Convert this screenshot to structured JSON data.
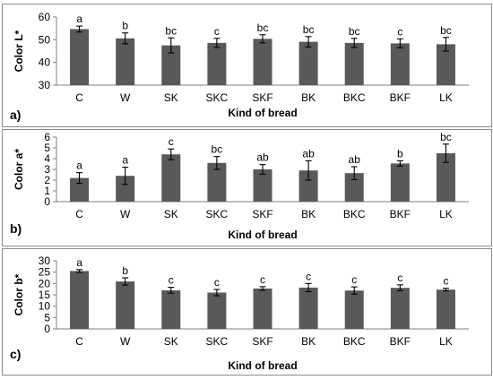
{
  "chart_data": [
    {
      "type": "bar",
      "panel_label": "a)",
      "ylabel": "Color L*",
      "xlabel": "Kind of bread",
      "categories": [
        "C",
        "W",
        "SK",
        "SKC",
        "SKF",
        "BK",
        "BKC",
        "BKF",
        "LK"
      ],
      "values": [
        54.7,
        50.6,
        47.5,
        48.6,
        50.4,
        49.1,
        48.6,
        48.4,
        48.0
      ],
      "errors": [
        1.3,
        2.4,
        3.3,
        2.0,
        1.8,
        2.3,
        2.0,
        2.0,
        3.0
      ],
      "letters": [
        "a",
        "b",
        "bc",
        "c",
        "bc",
        "bc",
        "bc",
        "c",
        "bc"
      ],
      "ylim": [
        30,
        60
      ],
      "yticks": [
        30,
        40,
        50,
        60
      ],
      "bar_color": "#595959",
      "grid": false,
      "legend": "none"
    },
    {
      "type": "bar",
      "panel_label": "b)",
      "ylabel": "Color a*",
      "xlabel": "Kind of bread",
      "categories": [
        "C",
        "W",
        "SK",
        "SKC",
        "SKF",
        "BK",
        "BKC",
        "BKF",
        "LK"
      ],
      "values": [
        2.2,
        2.4,
        4.4,
        3.6,
        3.0,
        2.9,
        2.65,
        3.55,
        4.5
      ],
      "errors": [
        0.5,
        0.8,
        0.5,
        0.6,
        0.45,
        0.9,
        0.6,
        0.25,
        0.85
      ],
      "letters": [
        "a",
        "a",
        "c",
        "bc",
        "ab",
        "ab",
        "ab",
        "b",
        "bc"
      ],
      "ylim": [
        0,
        6
      ],
      "yticks": [
        0,
        1,
        2,
        3,
        4,
        5,
        6
      ],
      "bar_color": "#595959",
      "grid": false,
      "legend": "none"
    },
    {
      "type": "bar",
      "panel_label": "c)",
      "ylabel": "Color b*",
      "xlabel": "Kind of bread",
      "categories": [
        "C",
        "W",
        "SK",
        "SKC",
        "SKF",
        "BK",
        "BKC",
        "BKF",
        "LK"
      ],
      "values": [
        25.5,
        20.9,
        17.0,
        16.0,
        17.8,
        18.2,
        16.9,
        18.1,
        17.3
      ],
      "errors": [
        0.6,
        1.6,
        1.3,
        1.4,
        0.8,
        1.8,
        1.6,
        1.3,
        0.6
      ],
      "letters": [
        "a",
        "b",
        "c",
        "c",
        "c",
        "c",
        "c",
        "c",
        "c"
      ],
      "ylim": [
        0,
        30
      ],
      "yticks": [
        0,
        5,
        10,
        15,
        20,
        25,
        30
      ],
      "bar_color": "#595959",
      "grid": false,
      "legend": "none"
    }
  ]
}
